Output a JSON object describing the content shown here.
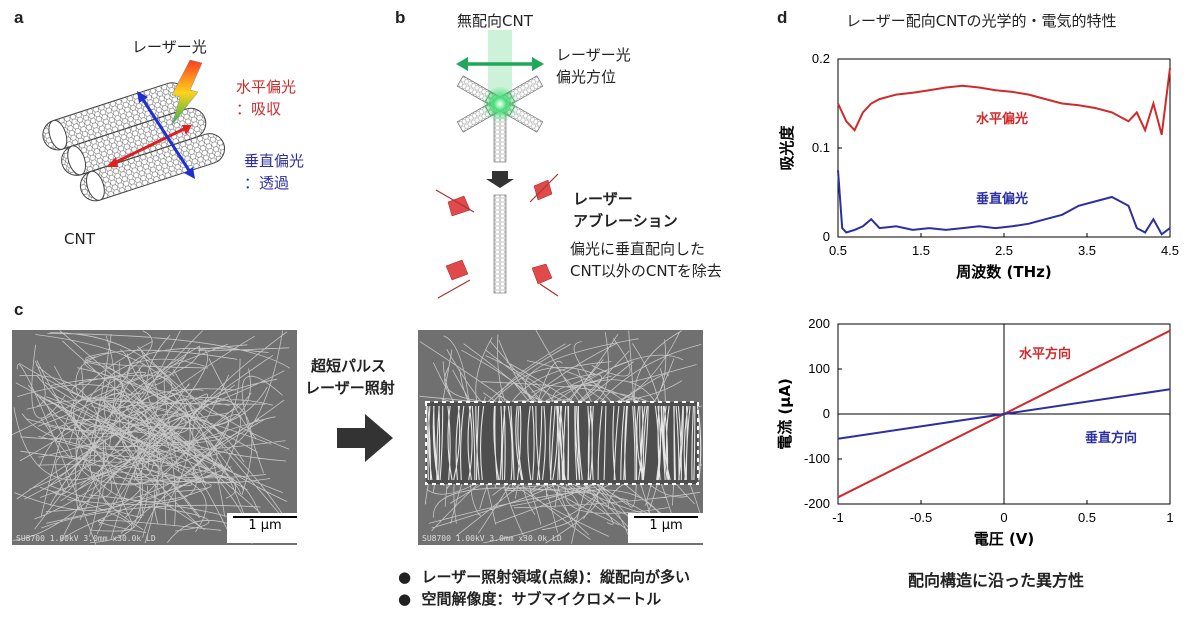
{
  "panel_a": {
    "label": "a",
    "laser": "レーザー光",
    "horizontal_title": "水平偏光",
    "horizontal_effect": "：吸収",
    "vertical_title": "垂直偏光",
    "vertical_effect": "：透過",
    "cnt": "CNT"
  },
  "panel_b": {
    "label": "b",
    "top_title": "無配向CNT",
    "pol_line1": "レーザー光",
    "pol_line2": "偏光方位",
    "ablation_line1": "レーザー",
    "ablation_line2": "アブレーション",
    "desc_line1": "偏光に垂直配向した",
    "desc_line2": "CNT以外のCNTを除去"
  },
  "panel_c": {
    "label": "c",
    "arrow_line1": "超短パルス",
    "arrow_line2": "レーザー照射",
    "scale_left": "1 μm",
    "scale_right": "1 μm",
    "sem_info_left": "SU8700 1.00kV 3.0mm x30.0k LD",
    "sem_info_right": "SU8700 1.00kV 3.0mm x30.0k LD",
    "bullets": [
      "レーザー照射領域(点線)：縦配向が多い",
      "空間解像度：サブマイクロメートル"
    ]
  },
  "panel_d": {
    "label": "d",
    "caption": "配向構造に沿った異方性"
  },
  "colors": {
    "red": "#d02a2a",
    "blue": "#2c2fa0",
    "green": "#1fa85a"
  },
  "chart_data": [
    {
      "type": "line",
      "title": "レーザー配向CNTの光学的・電気的特性",
      "xlabel": "周波数 (THz)",
      "ylabel": "吸光度",
      "xlim": [
        0.5,
        4.5
      ],
      "ylim": [
        0,
        0.2
      ],
      "xticks": [
        "0.5",
        "1.5",
        "2.5",
        "3.5",
        "4.5"
      ],
      "yticks": [
        "0",
        "0.1",
        "0.2"
      ],
      "series": [
        {
          "name": "水平偏光",
          "color": "#d02a2a",
          "x": [
            0.5,
            0.6,
            0.7,
            0.8,
            0.9,
            1.0,
            1.2,
            1.4,
            1.6,
            1.8,
            2.0,
            2.2,
            2.4,
            2.6,
            2.8,
            3.0,
            3.2,
            3.4,
            3.6,
            3.8,
            4.0,
            4.1,
            4.2,
            4.3,
            4.4,
            4.5
          ],
          "y": [
            0.15,
            0.13,
            0.12,
            0.14,
            0.15,
            0.155,
            0.16,
            0.162,
            0.165,
            0.168,
            0.17,
            0.168,
            0.165,
            0.163,
            0.16,
            0.155,
            0.15,
            0.148,
            0.145,
            0.14,
            0.13,
            0.14,
            0.12,
            0.15,
            0.115,
            0.19
          ]
        },
        {
          "name": "垂直偏光",
          "color": "#2c2fa0",
          "x": [
            0.5,
            0.55,
            0.6,
            0.7,
            0.8,
            0.9,
            1.0,
            1.2,
            1.4,
            1.6,
            1.8,
            2.0,
            2.2,
            2.4,
            2.6,
            2.8,
            3.0,
            3.2,
            3.4,
            3.6,
            3.8,
            3.9,
            4.0,
            4.1,
            4.2,
            4.3,
            4.4,
            4.5
          ],
          "y": [
            0.075,
            0.01,
            0.005,
            0.008,
            0.012,
            0.02,
            0.01,
            0.012,
            0.008,
            0.01,
            0.008,
            0.01,
            0.012,
            0.01,
            0.012,
            0.015,
            0.02,
            0.025,
            0.035,
            0.04,
            0.045,
            0.04,
            0.035,
            0.01,
            0.005,
            0.02,
            0.003,
            0.01
          ]
        }
      ]
    },
    {
      "type": "line",
      "title": "",
      "xlabel": "電圧 (V)",
      "ylabel": "電流 (μA)",
      "xlim": [
        -1,
        1
      ],
      "ylim": [
        -200,
        200
      ],
      "xticks": [
        "-1",
        "-0.5",
        "0",
        "0.5",
        "1"
      ],
      "yticks": [
        "200",
        "100",
        "0",
        "-100",
        "-200"
      ],
      "series": [
        {
          "name": "水平方向",
          "color": "#d02a2a",
          "x": [
            -1,
            1
          ],
          "y": [
            -185,
            185
          ]
        },
        {
          "name": "垂直方向",
          "color": "#2c2fa0",
          "x": [
            -1,
            1
          ],
          "y": [
            -55,
            55
          ]
        }
      ]
    }
  ]
}
